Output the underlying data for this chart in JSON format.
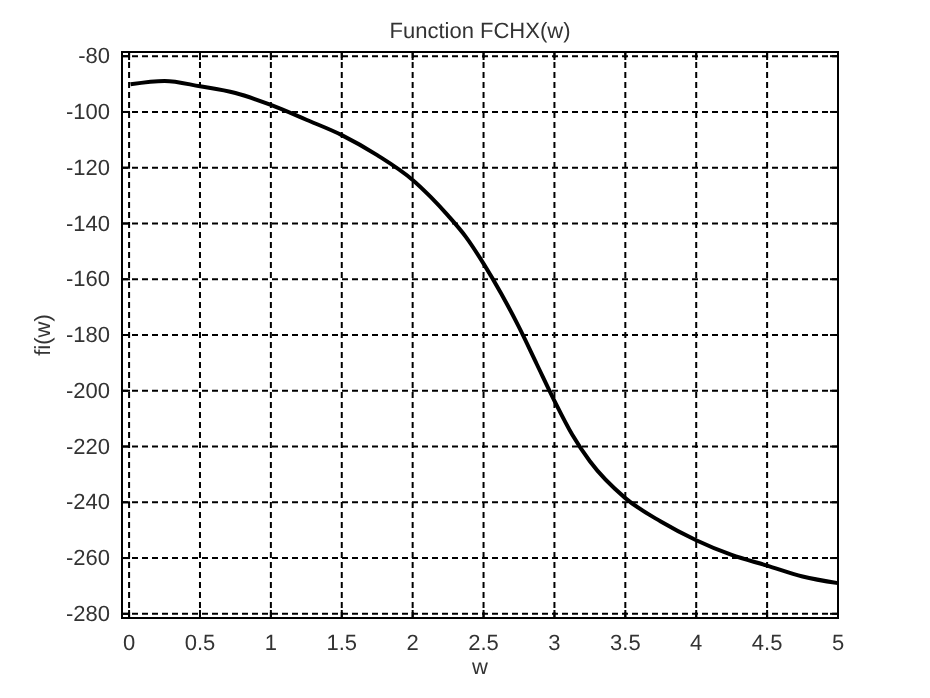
{
  "chart_data": {
    "type": "line",
    "title": "Function FCHX(w)",
    "xlabel": "w",
    "ylabel": "fi(w)",
    "x": [
      0.01,
      0.25,
      0.5,
      0.75,
      1,
      1.25,
      1.5,
      1.75,
      2,
      2.125,
      2.25,
      2.375,
      2.5,
      2.625,
      2.75,
      2.875,
      3,
      3.125,
      3.25,
      3.5,
      3.75,
      4,
      4.25,
      4.5,
      4.75,
      5
    ],
    "series": [
      {
        "color": "#000000",
        "values": [
          -90.1,
          -88.9,
          -90.8,
          -93.2,
          -97.5,
          -102.8,
          -108.3,
          -115.5,
          -124.4,
          -130.4,
          -137.2,
          -144.8,
          -154.4,
          -165.2,
          -177.2,
          -190.4,
          -203.6,
          -215.7,
          -225.3,
          -238.5,
          -246.9,
          -253.6,
          -258.9,
          -262.7,
          -266.6,
          -269
        ]
      }
    ],
    "xlim": [
      -0.05,
      5
    ],
    "ylim": [
      -281.5,
      -78.5
    ],
    "xticks": [
      0,
      0.5,
      1,
      1.5,
      2,
      2.5,
      3,
      3.5,
      4,
      4.5,
      5
    ],
    "yticks": [
      -280,
      -260,
      -240,
      -220,
      -200,
      -180,
      -160,
      -140,
      -120,
      -100,
      -80
    ],
    "grid": true,
    "line_style": "solid",
    "marker": "none"
  }
}
